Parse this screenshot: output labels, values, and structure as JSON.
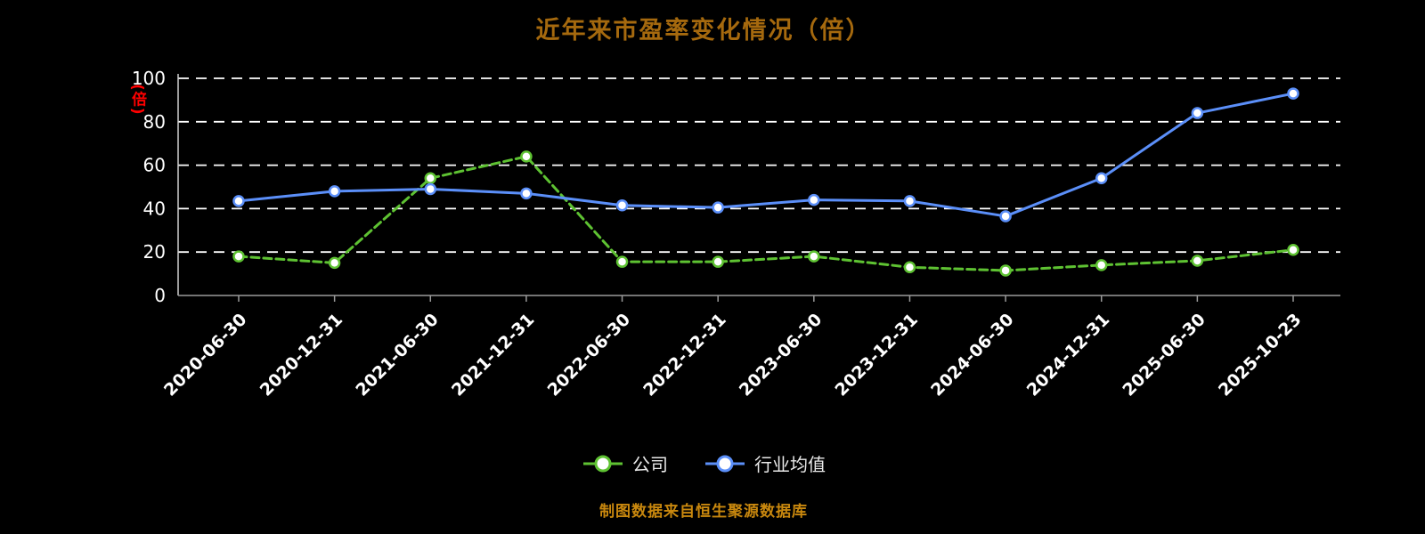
{
  "title": "近年来市盈率变化情况（倍）",
  "y_axis_unit_label": "(倍)",
  "footer": "制图数据来自恒生聚源数据库",
  "colors": {
    "background": "#000000",
    "title": "#a5690e",
    "unit_label": "#fe0000",
    "gridline": "#ffffff",
    "tick_text": "#ffffff",
    "company_green": "#5ec232",
    "industry_blue": "#5b8ff9",
    "footer_orange": "#c9880e"
  },
  "legend": [
    {
      "label": "公司",
      "color": "#5ec232"
    },
    {
      "label": "行业均值",
      "color": "#5b8ff9"
    }
  ],
  "chart_data": {
    "type": "line",
    "title": "近年来市盈率变化情况（倍）",
    "xlabel": "",
    "ylabel": "(倍)",
    "ylim": [
      0,
      100
    ],
    "yticks": [
      0,
      20,
      40,
      60,
      80,
      100
    ],
    "grid": "horizontal dashed white lines",
    "legend_position": "bottom",
    "categories": [
      "2020-06-30",
      "2020-12-31",
      "2021-06-30",
      "2021-12-31",
      "2022-06-30",
      "2022-12-31",
      "2023-06-30",
      "2023-12-31",
      "2024-06-30",
      "2024-12-31",
      "2025-06-30",
      "2025-10-23"
    ],
    "series": [
      {
        "name": "公司",
        "color": "#5ec232",
        "line_style": "dashed",
        "marker": "circle-white-fill",
        "values": [
          18,
          15,
          54,
          64,
          15.5,
          15.5,
          18,
          13,
          11.5,
          14,
          16,
          21
        ]
      },
      {
        "name": "行业均值",
        "color": "#5b8ff9",
        "line_style": "solid",
        "marker": "circle-white-fill",
        "values": [
          43.5,
          48,
          49,
          47,
          41.5,
          40.5,
          44,
          43.5,
          36.5,
          54,
          84,
          93
        ]
      }
    ]
  }
}
